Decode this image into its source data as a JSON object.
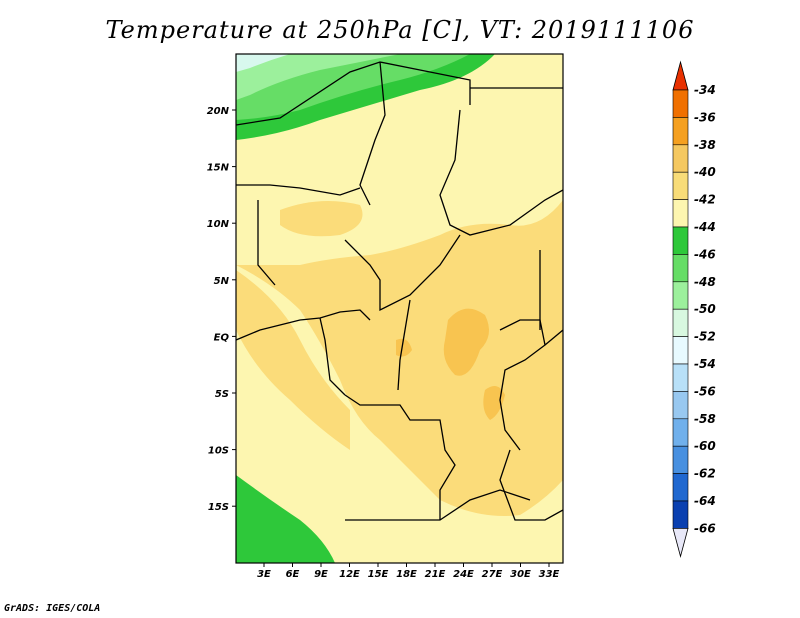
{
  "title": "Temperature at 250hPa [C], VT: 2019111106",
  "footer": "GrADS: IGES/COLA",
  "map": {
    "lat_labels": [
      "20N",
      "15N",
      "10N",
      "5N",
      "EQ",
      "5S",
      "10S",
      "15S"
    ],
    "lon_labels": [
      "3E",
      "6E",
      "9E",
      "12E",
      "15E",
      "18E",
      "21E",
      "24E",
      "27E",
      "30E",
      "33E"
    ]
  },
  "colorbar": {
    "labels": [
      "-34",
      "-36",
      "-38",
      "-40",
      "-42",
      "-44",
      "-46",
      "-48",
      "-50",
      "-52",
      "-54",
      "-56",
      "-58",
      "-60",
      "-62",
      "-64",
      "-66"
    ],
    "colors": [
      "#f0f0a0",
      "#f0e080",
      "#f5c860",
      "#f5a020",
      "#f07000",
      "#e83000",
      "#28c830",
      "#60dc60",
      "#98f098",
      "#c8f8c8",
      "#e8faff",
      "#c0e8f8",
      "#a0d0f0",
      "#78b8f0",
      "#50a0e8",
      "#2878d8",
      "#0050c0",
      "#0a2090",
      "#101060",
      "#e8e8f8"
    ]
  }
}
